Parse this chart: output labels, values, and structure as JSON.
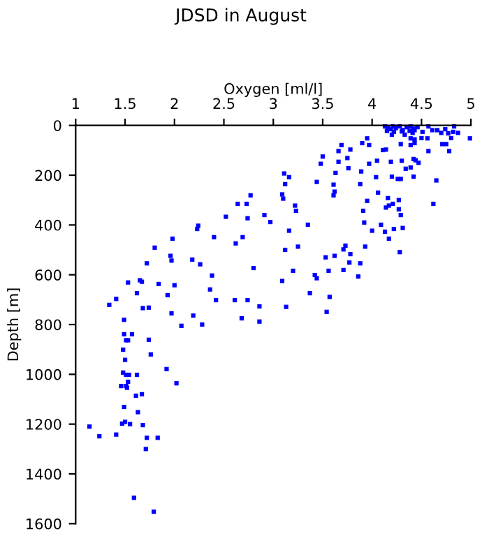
{
  "chart_data": {
    "type": "scatter",
    "title": "JDSD in August",
    "xlabel": "Oxygen [ml/l]",
    "ylabel": "Depth [m]",
    "xlim": [
      1,
      5
    ],
    "xticks": [
      1,
      1.5,
      2,
      2.5,
      3,
      3.5,
      4,
      4.5,
      5
    ],
    "ylim": [
      1600,
      0
    ],
    "yticks": [
      0,
      200,
      400,
      600,
      800,
      1000,
      1200,
      1400,
      1600
    ],
    "grid": false,
    "marker": "square",
    "series": [
      {
        "color": "#0000ff",
        "x": [
          4.13,
          4.16,
          4.19,
          4.21,
          4.24,
          4.28,
          4.31,
          4.35,
          4.39,
          4.42,
          4.46,
          4.15,
          4.22,
          4.3,
          4.38,
          4.43,
          4.2,
          4.33,
          4.41,
          4.51,
          4.57,
          4.61,
          4.66,
          4.74,
          4.83,
          4.82,
          4.87,
          4.77,
          4.7,
          4.56,
          4.5,
          4.39,
          4.43,
          4.99,
          4.8,
          4.75,
          4.71,
          4.78,
          4.57,
          4.43,
          4.39,
          4.29,
          3.95,
          3.9,
          3.97,
          3.69,
          3.66,
          3.78,
          3.5,
          3.48,
          3.75,
          3.66,
          3.63,
          3.89,
          3.76,
          3.97,
          4.05,
          4.11,
          4.14,
          4.19,
          4.3,
          4.34,
          4.39,
          4.42,
          4.44,
          4.47,
          4.42,
          4.29,
          4.26,
          4.2,
          4.04,
          4.65,
          3.44,
          3.61,
          3.62,
          3.61,
          3.88,
          3.95,
          3.91,
          3.11,
          3.16,
          3.12,
          3.09,
          3.1,
          3.22,
          3.23,
          2.77,
          2.64,
          2.73,
          2.74,
          2.91,
          2.97,
          2.52,
          2.24,
          2.23,
          2.4,
          2.62,
          2.69,
          3.35,
          3.16,
          3.12,
          3.25,
          3.53,
          3.62,
          3.73,
          3.71,
          3.78,
          3.93,
          3.92,
          4.0,
          4.09,
          4.13,
          4.17,
          4.22,
          4.21,
          4.17,
          4.14,
          4.27,
          4.29,
          4.31,
          4.27,
          4.06,
          4.16,
          4.28,
          4.62,
          1.98,
          1.8,
          1.72,
          1.96,
          2.18,
          2.26,
          1.97,
          2.38,
          2.8,
          3.2,
          3.42,
          3.56,
          3.71,
          3.77,
          3.88,
          3.86,
          3.44,
          3.09,
          2.36,
          2.42,
          1.65,
          1.53,
          1.84,
          2.0,
          1.62,
          1.93,
          1.41,
          1.34,
          2.61,
          2.74,
          2.86,
          3.37,
          3.57,
          1.67,
          3.13,
          3.54,
          1.68,
          1.74,
          1.97,
          2.19,
          2.07,
          2.28,
          2.68,
          2.86,
          1.49,
          1.49,
          1.57,
          1.51,
          1.53,
          1.74,
          1.48,
          1.76,
          1.5,
          1.48,
          1.51,
          1.54,
          1.62,
          1.92,
          1.46,
          1.51,
          1.52,
          1.53,
          2.02,
          1.61,
          1.67,
          1.49,
          1.63,
          1.47,
          1.5,
          1.55,
          1.68,
          1.14,
          1.24,
          1.41,
          1.72,
          1.83,
          1.71,
          1.59,
          1.79
        ],
        "values": [
          4,
          9,
          15,
          4,
          11,
          4,
          19,
          7,
          4,
          13,
          7,
          22,
          26,
          24,
          22,
          19,
          37,
          37,
          30,
          26,
          4,
          19,
          19,
          15,
          4,
          26,
          30,
          32,
          30,
          52,
          51,
          52,
          56,
          52,
          51,
          75,
          75,
          103,
          103,
          71,
          79,
          75,
          52,
          71,
          79,
          79,
          103,
          97,
          125,
          154,
          131,
          146,
          191,
          185,
          172,
          154,
          142,
          99,
          97,
          146,
          142,
          174,
          169,
          135,
          140,
          150,
          206,
          215,
          215,
          206,
          208,
          221,
          227,
          238,
          266,
          281,
          236,
          303,
          343,
          193,
          208,
          236,
          277,
          294,
          322,
          343,
          281,
          315,
          315,
          373,
          360,
          388,
          367,
          403,
          416,
          449,
          474,
          449,
          399,
          423,
          500,
          487,
          530,
          524,
          483,
          498,
          517,
          487,
          390,
          423,
          399,
          427,
          455,
          416,
          315,
          322,
          330,
          300,
          360,
          412,
          337,
          270,
          292,
          509,
          315,
          455,
          491,
          554,
          524,
          539,
          558,
          543,
          603,
          573,
          584,
          601,
          584,
          581,
          551,
          554,
          607,
          614,
          625,
          659,
          702,
          622,
          631,
          637,
          642,
          674,
          682,
          697,
          721,
          702,
          702,
          727,
          674,
          689,
          628,
          729,
          749,
          734,
          732,
          755,
          764,
          805,
          800,
          775,
          788,
          781,
          839,
          839,
          863,
          863,
          861,
          901,
          920,
          942,
          993,
          1002,
          1002,
          1002,
          979,
          1047,
          1047,
          1054,
          1030,
          1036,
          1086,
          1080,
          1131,
          1152,
          1198,
          1191,
          1200,
          1204,
          1210,
          1249,
          1242,
          1255,
          1255,
          1300,
          1496,
          1552
        ]
      }
    ]
  }
}
